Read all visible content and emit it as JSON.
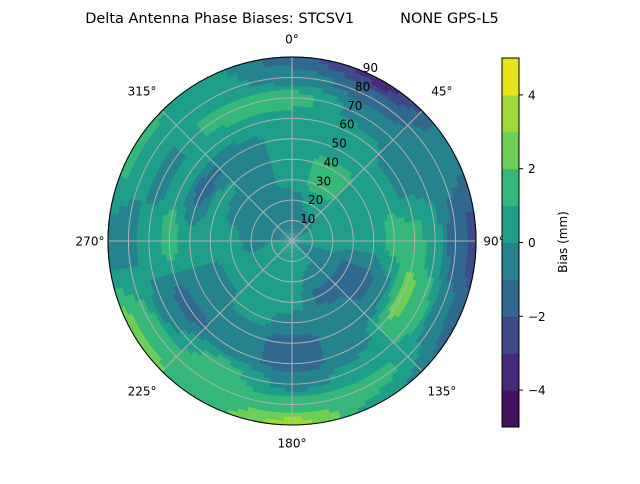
{
  "chart_data": {
    "type": "heatmap",
    "subtype": "polar filled contour",
    "title": "Delta Antenna Phase Biases: STCSV1          NONE GPS-L5",
    "angular_axis": {
      "direction": "clockwise",
      "zero_location": "top",
      "tick_labels": [
        "0°",
        "45°",
        "90°",
        "135°",
        "180°",
        "225°",
        "270°",
        "315°"
      ]
    },
    "radial_axis": {
      "range": [
        0,
        90
      ],
      "tick_labels": [
        "10",
        "20",
        "30",
        "40",
        "50",
        "60",
        "70",
        "80",
        "90"
      ]
    },
    "grid": true,
    "colorbar": {
      "label": "Bias (mm)",
      "range": [
        -5,
        5
      ],
      "levels": [
        -5,
        -4,
        -3,
        -2,
        -1,
        0,
        1,
        2,
        3,
        4,
        5
      ],
      "tick_labels": [
        "−4",
        "−2",
        "0",
        "2",
        "4"
      ],
      "tick_values": [
        -4,
        -2,
        0,
        2,
        4
      ],
      "colormap": "viridis",
      "colors": [
        "#46105f",
        "#482878",
        "#3e4a89",
        "#31688e",
        "#26828e",
        "#1f9e89",
        "#35b779",
        "#6ece58",
        "#a0da39",
        "#e5e419"
      ]
    },
    "grid_azimuths": [
      0,
      30,
      60,
      90,
      120,
      150,
      180,
      210,
      240,
      270,
      300,
      330
    ],
    "grid_zeniths": [
      0,
      10,
      20,
      30,
      40,
      50,
      60,
      70,
      80,
      90
    ],
    "bias_values_by_azimuth": [
      [
        0,
        -0.5,
        -0.5,
        0.5,
        0.5,
        0.5,
        0.5,
        1.5,
        -0.5,
        -1.5
      ],
      [
        0,
        -0.5,
        0.5,
        1.5,
        1.5,
        0.5,
        0.5,
        -0.5,
        -1.5,
        -3.5
      ],
      [
        0,
        0,
        0.5,
        0.5,
        0.5,
        0.5,
        -0.5,
        -0.5,
        -0.5,
        -0.5
      ],
      [
        0,
        0.5,
        0.5,
        0.5,
        0.5,
        1.5,
        1.5,
        0.5,
        -1.5,
        -2.5
      ],
      [
        0,
        -0.5,
        -0.5,
        -1.5,
        -1.5,
        -0.5,
        2.5,
        1.5,
        -0.5,
        -1.5
      ],
      [
        0,
        0.5,
        -0.5,
        -1.5,
        -0.5,
        -0.5,
        -0.5,
        0.5,
        1.5,
        0.5
      ],
      [
        0,
        0.5,
        0.5,
        0.5,
        -0.5,
        -1.5,
        -1.5,
        -0.5,
        1.5,
        3.5
      ],
      [
        0,
        0.5,
        0.5,
        0.5,
        0.5,
        -0.5,
        -0.5,
        1.5,
        1.5,
        1.5
      ],
      [
        0,
        0.5,
        0.5,
        0.5,
        -0.5,
        -0.5,
        -1.5,
        -0.5,
        1.5,
        2.5
      ],
      [
        0,
        0,
        -0.5,
        0.5,
        0.5,
        0.5,
        1.5,
        0.5,
        -0.5,
        -0.5
      ],
      [
        0,
        -0.5,
        -0.5,
        -0.5,
        0.5,
        -1.5,
        0.5,
        -0.5,
        0.5,
        1.5
      ],
      [
        0,
        -0.5,
        -0.5,
        -0.5,
        -0.5,
        -0.5,
        0.5,
        1.5,
        0.5,
        0.5
      ]
    ]
  }
}
